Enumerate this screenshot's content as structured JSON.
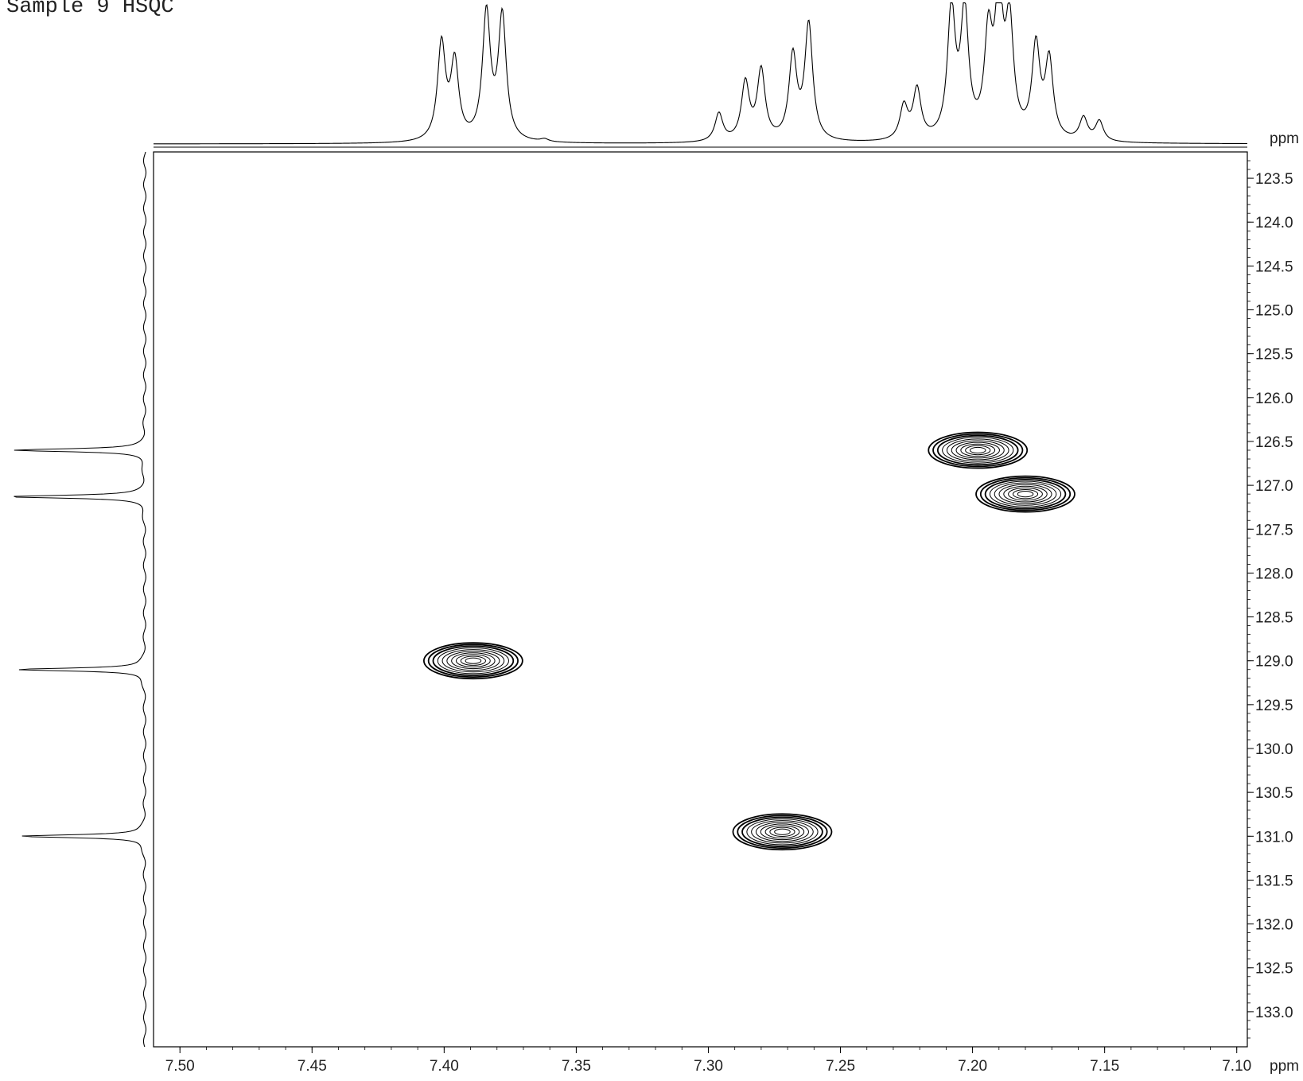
{
  "title": "Sample 9 HSQC",
  "chart_data": {
    "type": "contour",
    "title": "Sample 9 HSQC",
    "x_axis": {
      "unit": "ppm",
      "range": [
        7.51,
        7.096
      ],
      "ticks": [
        "7.50",
        "7.45",
        "7.40",
        "7.35",
        "7.30",
        "7.25",
        "7.20",
        "7.15",
        "7.10"
      ],
      "tick_values": [
        7.5,
        7.45,
        7.4,
        7.35,
        7.3,
        7.25,
        7.2,
        7.15,
        7.1
      ]
    },
    "y_axis": {
      "unit": "ppm",
      "range": [
        123.2,
        133.4
      ],
      "ticks": [
        "123.5",
        "124.0",
        "124.5",
        "125.0",
        "125.5",
        "126.0",
        "126.5",
        "127.0",
        "127.5",
        "128.0",
        "128.5",
        "129.0",
        "129.5",
        "130.0",
        "130.5",
        "131.0",
        "131.5",
        "132.0",
        "132.5",
        "133.0"
      ],
      "tick_values": [
        123.5,
        124.0,
        124.5,
        125.0,
        125.5,
        126.0,
        126.5,
        127.0,
        127.5,
        128.0,
        128.5,
        129.0,
        129.5,
        130.0,
        130.5,
        131.0,
        131.5,
        132.0,
        132.5,
        133.0
      ]
    },
    "cross_peaks": [
      {
        "h_ppm": 7.389,
        "c_ppm": 129.0
      },
      {
        "h_ppm": 7.272,
        "c_ppm": 130.95
      },
      {
        "h_ppm": 7.198,
        "c_ppm": 126.6
      },
      {
        "h_ppm": 7.18,
        "c_ppm": 127.1
      }
    ],
    "f2_projection_peaks": [
      {
        "ppm": 7.401,
        "intensity": 0.72
      },
      {
        "ppm": 7.396,
        "intensity": 0.57
      },
      {
        "ppm": 7.384,
        "intensity": 0.94
      },
      {
        "ppm": 7.378,
        "intensity": 0.92
      },
      {
        "ppm": 7.362,
        "intensity": 0.02
      },
      {
        "ppm": 7.296,
        "intensity": 0.21
      },
      {
        "ppm": 7.286,
        "intensity": 0.43
      },
      {
        "ppm": 7.28,
        "intensity": 0.52
      },
      {
        "ppm": 7.268,
        "intensity": 0.62
      },
      {
        "ppm": 7.262,
        "intensity": 0.86
      },
      {
        "ppm": 7.226,
        "intensity": 0.25
      },
      {
        "ppm": 7.221,
        "intensity": 0.37
      },
      {
        "ppm": 7.208,
        "intensity": 0.95
      },
      {
        "ppm": 7.203,
        "intensity": 0.92
      },
      {
        "ppm": 7.194,
        "intensity": 0.72
      },
      {
        "ppm": 7.19,
        "intensity": 1.0
      },
      {
        "ppm": 7.186,
        "intensity": 0.82
      },
      {
        "ppm": 7.176,
        "intensity": 0.68
      },
      {
        "ppm": 7.171,
        "intensity": 0.58
      },
      {
        "ppm": 7.158,
        "intensity": 0.17
      },
      {
        "ppm": 7.152,
        "intensity": 0.15
      }
    ],
    "f1_projection_peaks": [
      {
        "ppm": 126.6,
        "intensity": 0.96
      },
      {
        "ppm": 127.13,
        "intensity": 1.0
      },
      {
        "ppm": 129.1,
        "intensity": 0.95
      },
      {
        "ppm": 131.0,
        "intensity": 0.93
      }
    ]
  }
}
